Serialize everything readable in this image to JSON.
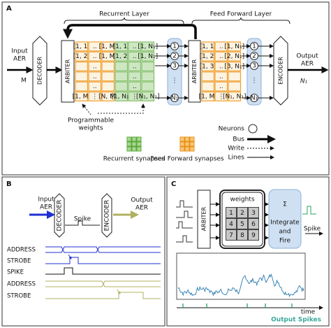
{
  "a": {
    "label": "A",
    "recurrent_layer": "Recurrent Layer",
    "feed_forward_layer": "Feed Forward Layer",
    "input_aer": [
      "Input",
      "AER"
    ],
    "input_size": "M",
    "decoder": "DECODER",
    "arbiter_1": "ARBITER",
    "arbiter_2": "ARBITER",
    "encoder": "ENCODER",
    "output_aer": [
      "Output",
      "AER"
    ],
    "output_size": "N₁",
    "input_weights": [
      [
        "[1, 1]",
        "..",
        "[1, M]"
      ],
      [
        "[1, 2]",
        "..",
        "[1, M]"
      ],
      [
        null,
        "..",
        null
      ],
      [
        null,
        "..",
        null
      ],
      [
        null,
        "..",
        null
      ],
      [
        "[1, M]",
        "⋮",
        "[N, M]"
      ]
    ],
    "recurrent_weights": [
      [
        "[1, 1]",
        "..",
        "[1, N₁]"
      ],
      [
        "[1, 2]",
        "..",
        "[1, N₁]"
      ],
      [
        null,
        "..",
        null
      ],
      [
        null,
        "..",
        null
      ],
      [
        null,
        "..",
        null
      ],
      [
        "[1, N₁]",
        "⋮",
        "[N₁, N₁]"
      ]
    ],
    "ff_weights": [
      [
        "[1, 1]",
        "..",
        "[1, N₁]"
      ],
      [
        "[1, 2]",
        "..",
        "[2, N₁]"
      ],
      [
        "[1, 3]",
        "..",
        "[3, N₁]"
      ],
      [
        null,
        "..",
        null
      ],
      [
        null,
        "..",
        null
      ],
      [
        "[1, M]",
        "⋮",
        "[N₁, N₁]"
      ]
    ],
    "neurons": [
      "1",
      "2",
      "3",
      "⋮",
      "N₁"
    ],
    "ff_neurons": [
      "1",
      "2",
      "3",
      "⋮",
      "N₁"
    ],
    "programmable_weights": [
      "Programmable",
      "weights"
    ],
    "legend": {
      "recurrent": "Recurrent synapses",
      "feed_forward": "Feed Forward synapses",
      "neurons": "Neurons",
      "bus": "Bus",
      "write": "Write",
      "lines": "Lines"
    }
  },
  "b": {
    "label": "B",
    "input_aer": [
      "Input",
      "AER"
    ],
    "decoder": "DECODER",
    "spike": "Spike",
    "encoder": "ENCODER",
    "output_aer": [
      "Output",
      "AER"
    ],
    "signals": [
      "ADDRESS",
      "STROBE",
      "SPIKE",
      "ADDRESS",
      "STROBE"
    ]
  },
  "c": {
    "label": "C",
    "arbiter": "ARBITER",
    "weights_title": "weights",
    "weights": [
      "1",
      "2",
      "3",
      "4",
      "5",
      "6",
      "7",
      "8",
      "9"
    ],
    "sigma": "Σ",
    "neuron_text": [
      "Integrate",
      "and",
      "Fire"
    ],
    "spike": "Spike",
    "time": "time",
    "output_spikes": "Output Spikes"
  }
}
